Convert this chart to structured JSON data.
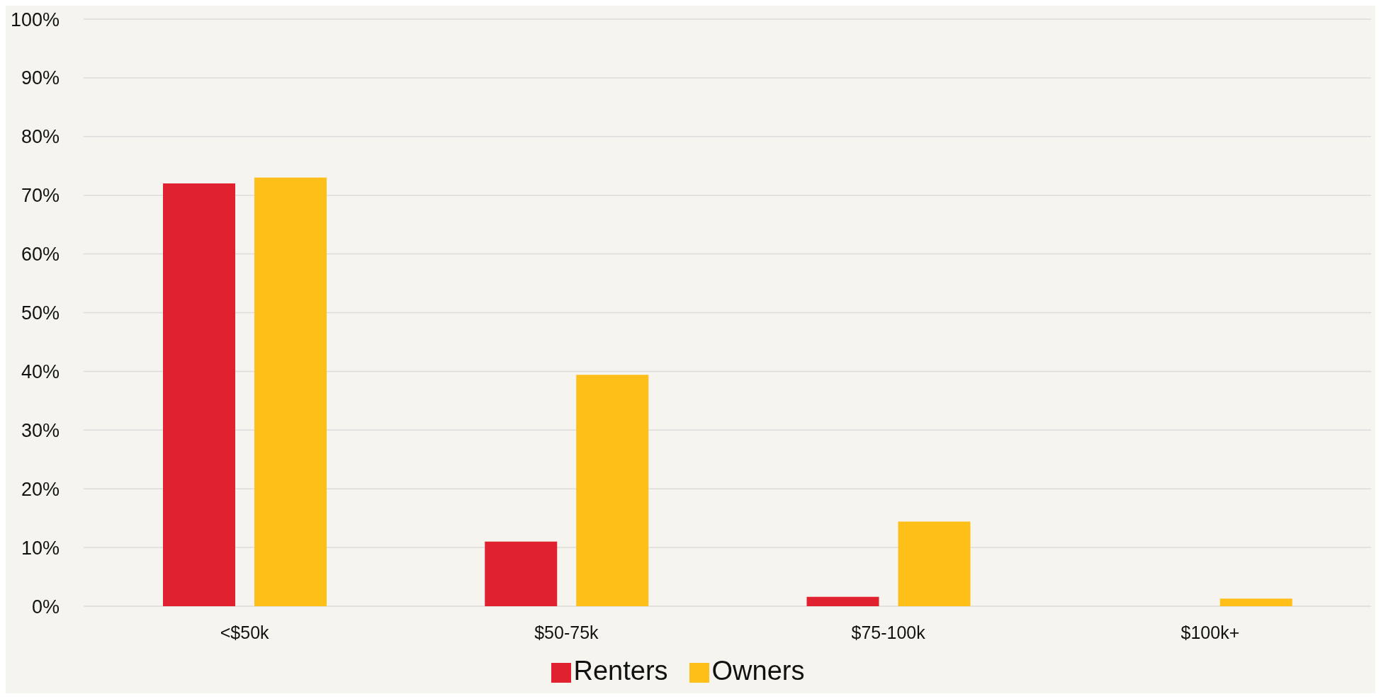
{
  "chart_data": {
    "type": "bar",
    "categories": [
      "<$50k",
      "$50-75k",
      "$75-100k",
      "$100k+"
    ],
    "series": [
      {
        "name": "Renters",
        "color": "#e02230",
        "values": [
          72,
          11,
          1.6,
          0
        ]
      },
      {
        "name": "Owners",
        "color": "#fdbf18",
        "values": [
          73,
          39.4,
          14.4,
          1.3
        ]
      }
    ],
    "ylim": [
      0,
      100
    ],
    "yticks": [
      {
        "value": 0,
        "label": "0%"
      },
      {
        "value": 10,
        "label": "10%"
      },
      {
        "value": 20,
        "label": "20%"
      },
      {
        "value": 30,
        "label": "30%"
      },
      {
        "value": 40,
        "label": "40%"
      },
      {
        "value": 50,
        "label": "50%"
      },
      {
        "value": 60,
        "label": "60%"
      },
      {
        "value": 70,
        "label": "70%"
      },
      {
        "value": 80,
        "label": "80%"
      },
      {
        "value": 90,
        "label": "90%"
      },
      {
        "value": 100,
        "label": "100%"
      }
    ],
    "grid": "y",
    "legend": "bottom"
  }
}
